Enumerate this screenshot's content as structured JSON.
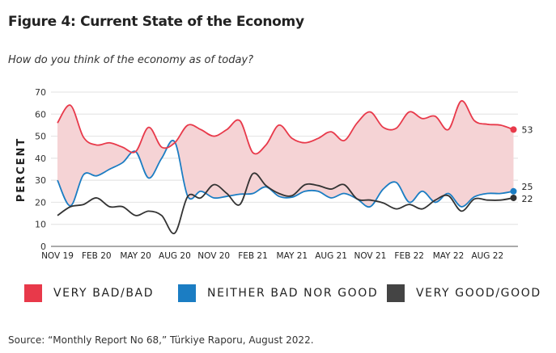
{
  "title": "Figure 4: Current State of the Economy",
  "subtitle": "How do you think of the economy as of today?",
  "source": "Source: “Monthly Report No 68,” Türkiye Raporu, August 2022.",
  "chart_data": {
    "type": "line",
    "ylabel": "PERCENT",
    "ylim": [
      0,
      70
    ],
    "yticks": [
      "0",
      "10",
      "20",
      "30",
      "40",
      "50",
      "60",
      "70"
    ],
    "xtick_labels": [
      "NOV 19",
      "FEB 20",
      "MAY 20",
      "AUG 20",
      "NOV 20",
      "FEB 21",
      "MAY 21",
      "AUG 21",
      "NOV 21",
      "FEB 22",
      "MAY 22",
      "AUG 22"
    ],
    "grid": true,
    "legend_placement": "bottom",
    "categories": [
      "Nov 19",
      "Dec 19",
      "Jan 20",
      "Feb 20",
      "Mar 20",
      "Apr 20",
      "May 20",
      "Jun 20",
      "Jul 20",
      "Aug 20",
      "Sep 20",
      "Oct 20",
      "Nov 20",
      "Dec 20",
      "Jan 21",
      "Feb 21",
      "Mar 21",
      "Apr 21",
      "May 21",
      "Jun 21",
      "Jul 21",
      "Aug 21",
      "Sep 21",
      "Oct 21",
      "Nov 21",
      "Dec 21",
      "Jan 22",
      "Feb 22",
      "Mar 22",
      "Apr 22",
      "May 22",
      "Jun 22",
      "Jul 22",
      "Aug 22",
      "Sep 22",
      "Oct 22"
    ],
    "series": [
      {
        "name": "VERY BAD/BAD",
        "color": "#e8394a",
        "end_label": "53",
        "values": [
          56,
          64,
          49.5,
          46,
          47,
          45,
          43,
          54,
          45,
          47,
          55,
          53,
          50,
          53,
          57,
          42.5,
          46,
          55,
          49,
          47,
          49,
          52,
          48,
          56,
          61,
          54,
          53.6,
          61,
          58,
          59,
          53,
          66,
          57,
          55.4,
          55,
          53
        ]
      },
      {
        "name": "NEITHER BAD NOR GOOD",
        "color": "#1b7dc3",
        "end_label": "25",
        "values": [
          30,
          18.4,
          32.5,
          32,
          35,
          38,
          43,
          31,
          40,
          47.4,
          22.7,
          25,
          22,
          22.7,
          23.7,
          24,
          27,
          22.7,
          22.3,
          25,
          25,
          22,
          24,
          21.5,
          18,
          26,
          29,
          20,
          25,
          20,
          24,
          18,
          22.5,
          24,
          24,
          25
        ]
      },
      {
        "name": "VERY GOOD/GOOD",
        "color": "#333333",
        "end_label": "22",
        "values": [
          14,
          18,
          19,
          22,
          18,
          18,
          14,
          16,
          14,
          6,
          22.7,
          22,
          28,
          24,
          19,
          33,
          27.6,
          24,
          23,
          28,
          27.6,
          26,
          28,
          21.5,
          21,
          19.7,
          17,
          19,
          17,
          21,
          23,
          16,
          21.5,
          21,
          21,
          22
        ]
      }
    ],
    "fill_between": [
      "VERY BAD/BAD",
      "NEITHER BAD NOR GOOD"
    ],
    "fill_color": "#f5d3d5"
  }
}
